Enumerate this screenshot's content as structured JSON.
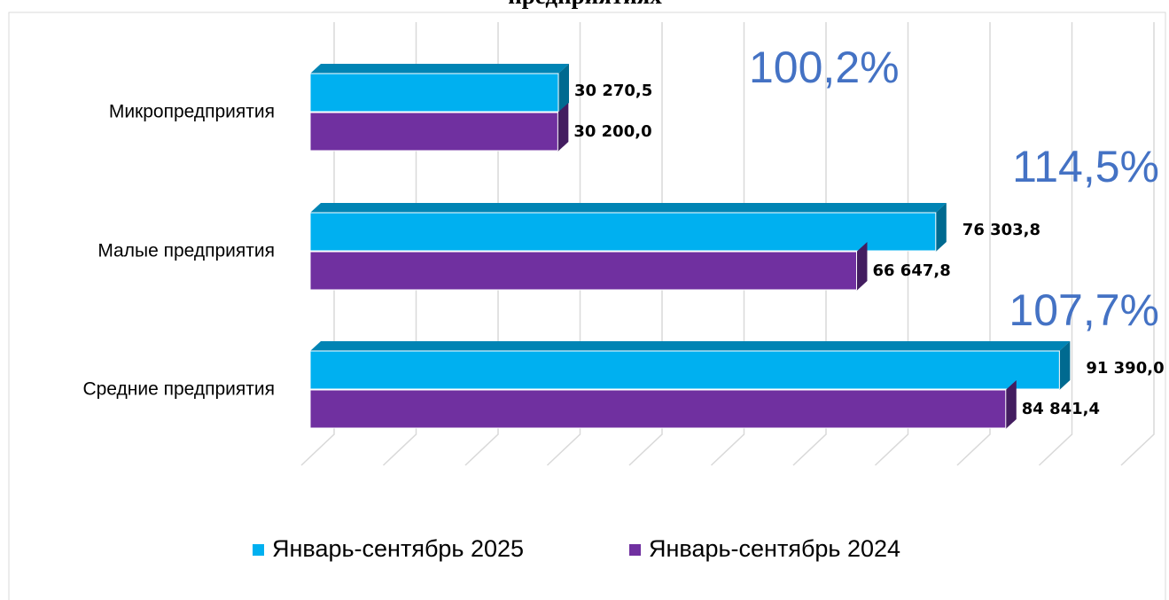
{
  "chart_data": {
    "type": "bar3d",
    "orientation": "horizontal",
    "title": "предприятиях",
    "categories": [
      "Микропредприятия",
      "Малые предприятия",
      "Средние предприятия"
    ],
    "series": [
      {
        "name": "Январь-сентябрь 2025",
        "color": "#00b0f0",
        "values": [
          30270.5,
          76303.8,
          91390.0
        ],
        "value_labels": [
          "30 270,5",
          "76 303,8",
          "91 390,0"
        ]
      },
      {
        "name": "Январь-сентябрь 2024",
        "color": "#7030a0",
        "values": [
          30200.0,
          66647.8,
          84841.4
        ],
        "value_labels": [
          "30 200,0",
          "66 647,8",
          "84 841,4"
        ]
      }
    ],
    "annotations": [
      "100,2%",
      "114,5%",
      "107,7%"
    ],
    "xlim": [
      0,
      100000
    ],
    "xticks": [
      0,
      10000,
      20000,
      30000,
      40000,
      50000,
      60000,
      70000,
      80000,
      90000,
      100000
    ],
    "grid": true,
    "legend": "bottom"
  }
}
